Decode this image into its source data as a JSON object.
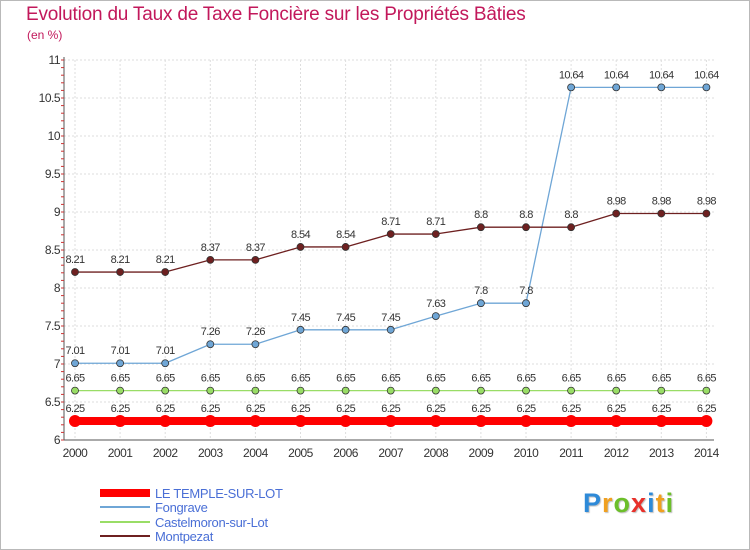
{
  "header": {
    "title": "Evolution du Taux de Taxe Foncière sur les Propriétés Bâties",
    "subtitle": "(en %)"
  },
  "chart_data": {
    "type": "line",
    "x": [
      "2000",
      "2001",
      "2002",
      "2003",
      "2004",
      "2005",
      "2006",
      "2007",
      "2008",
      "2009",
      "2010",
      "2011",
      "2012",
      "2013",
      "2014"
    ],
    "ylim": [
      6,
      11
    ],
    "yticks": [
      "6",
      "6.5",
      "7",
      "7.5",
      "8",
      "8.5",
      "9",
      "9.5",
      "10",
      "10.5",
      "11"
    ],
    "grid": true,
    "legend_position": "bottom-left",
    "series": [
      {
        "name": "LE TEMPLE-SUR-LOT",
        "color": "#ff0000",
        "labels": [
          "6.25",
          "6.25",
          "6.25",
          "6.25",
          "6.25",
          "6.25",
          "6.25",
          "6.25",
          "6.25",
          "6.25",
          "6.25",
          "6.25",
          "6.25",
          "6.25",
          "6.25"
        ],
        "values": [
          6.25,
          6.25,
          6.25,
          6.25,
          6.25,
          6.25,
          6.25,
          6.25,
          6.25,
          6.25,
          6.25,
          6.25,
          6.25,
          6.25,
          6.25
        ]
      },
      {
        "name": "Fongrave",
        "color": "#6fa6d6",
        "labels": [
          "7.01",
          "7.01",
          "7.01",
          "7.26",
          "7.26",
          "7.45",
          "7.45",
          "7.45",
          "7.63",
          "7.8",
          "7.8",
          "10.64",
          "10.64",
          "10.64",
          "10.64"
        ],
        "values": [
          7.01,
          7.01,
          7.01,
          7.26,
          7.26,
          7.45,
          7.45,
          7.45,
          7.63,
          7.8,
          7.8,
          10.64,
          10.64,
          10.64,
          10.64
        ]
      },
      {
        "name": "Castelmoron-sur-Lot",
        "color": "#99dd66",
        "labels": [
          "6.65",
          "6.65",
          "6.65",
          "6.65",
          "6.65",
          "6.65",
          "6.65",
          "6.65",
          "6.65",
          "6.65",
          "6.65",
          "6.65",
          "6.65",
          "6.65",
          "6.65"
        ],
        "values": [
          6.65,
          6.65,
          6.65,
          6.65,
          6.65,
          6.65,
          6.65,
          6.65,
          6.65,
          6.65,
          6.65,
          6.65,
          6.65,
          6.65,
          6.65
        ]
      },
      {
        "name": "Montpezat",
        "color": "#6e2020",
        "labels": [
          "8.21",
          "8.21",
          "8.21",
          "8.37",
          "8.37",
          "8.54",
          "8.54",
          "8.71",
          "8.71",
          "8.8",
          "8.8",
          "8.8",
          "8.98",
          "8.98",
          "8.98"
        ],
        "values": [
          8.21,
          8.21,
          8.21,
          8.37,
          8.37,
          8.54,
          8.54,
          8.71,
          8.71,
          8.8,
          8.8,
          8.8,
          8.98,
          8.98,
          8.98
        ]
      }
    ]
  },
  "legend": {
    "items": [
      "LE TEMPLE-SUR-LOT",
      "Fongrave",
      "Castelmoron-sur-Lot",
      "Montpezat"
    ]
  },
  "logo": {
    "text": "Proxiti",
    "letters": [
      {
        "ch": "P",
        "color": "#2e8ad8"
      },
      {
        "ch": "r",
        "color": "#f0a020"
      },
      {
        "ch": "o",
        "color": "#6cbf2a"
      },
      {
        "ch": "x",
        "color": "#e8302a"
      },
      {
        "ch": "i",
        "color": "#2e8ad8"
      },
      {
        "ch": "t",
        "color": "#f0a020"
      },
      {
        "ch": "i",
        "color": "#6cbf2a"
      }
    ]
  }
}
